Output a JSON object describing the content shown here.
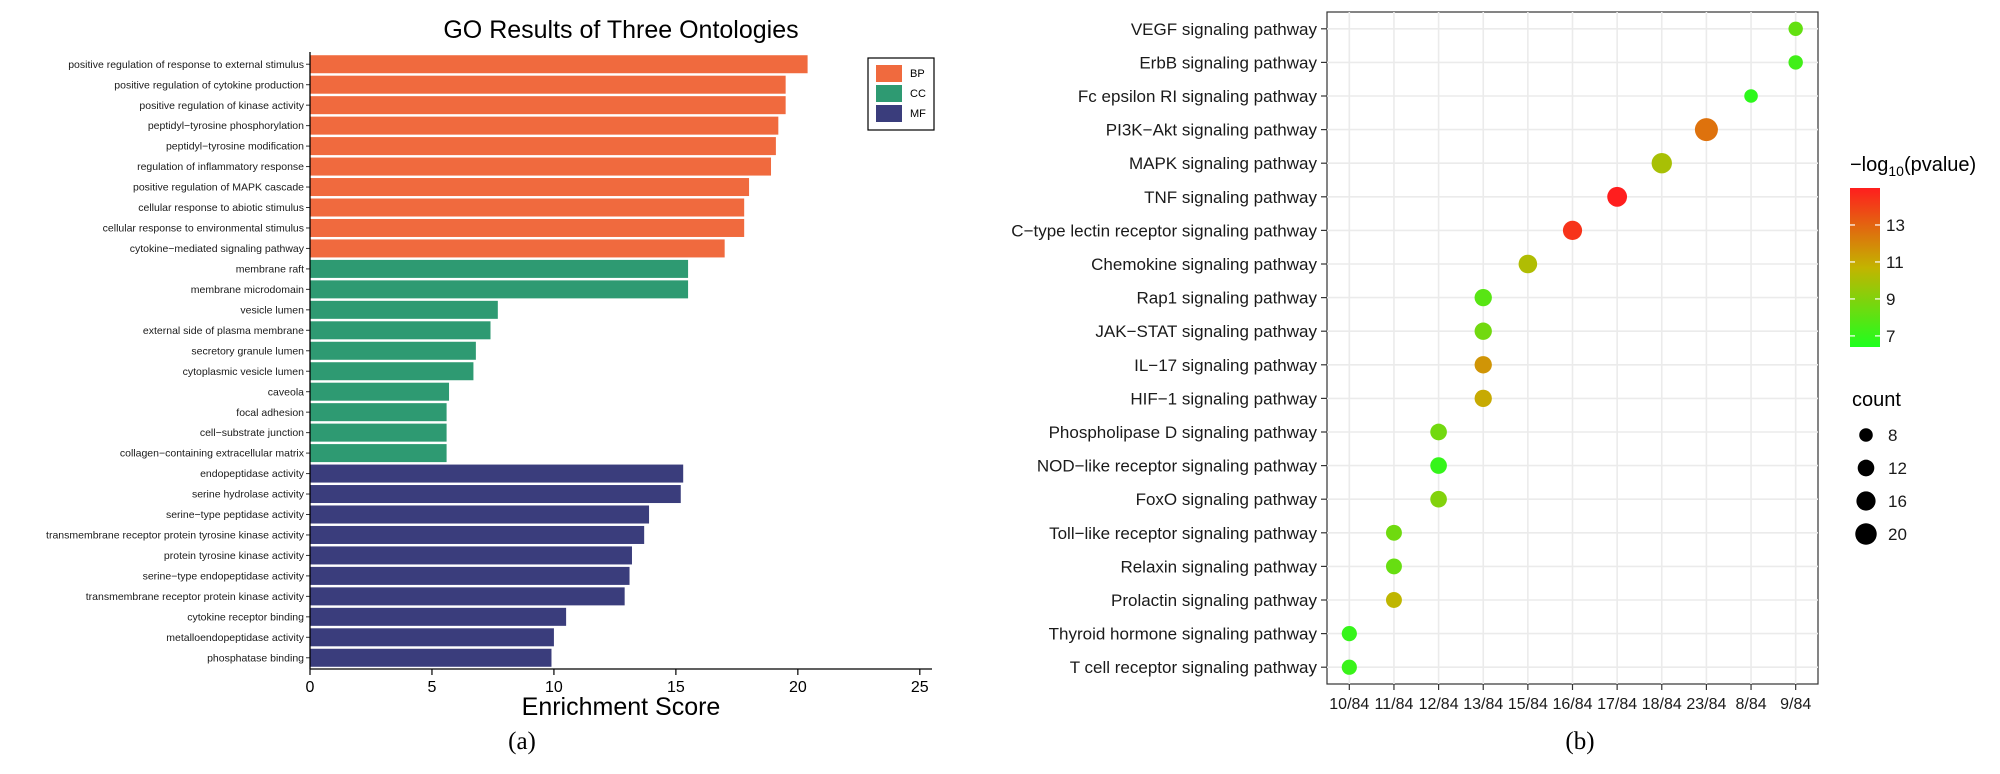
{
  "colors": {
    "BP": "#F06A3E",
    "CC": "#2E9A72",
    "MF": "#3A3D7C",
    "grid": "#EBEBEB",
    "low": "#1EFF1E",
    "high": "#FF1E1E",
    "mid": "#C3B400"
  },
  "chart_data": [
    {
      "type": "bar",
      "orientation": "horizontal",
      "title": "GO Results of Three Ontologies",
      "xlabel": "Enrichment Score",
      "ylabel": "",
      "xlim": [
        0,
        25.5
      ],
      "xticks": [
        "0",
        "5",
        "10",
        "15",
        "20",
        "25"
      ],
      "xtick_values": [
        0,
        5,
        10,
        15,
        20,
        25
      ],
      "panel_label": "(a)",
      "legend": {
        "position": "top-right",
        "entries": [
          "BP",
          "CC",
          "MF"
        ]
      },
      "bars": [
        {
          "label": "positive regulation of response to external stimulus",
          "value": 20.4,
          "group": "BP"
        },
        {
          "label": "positive regulation of cytokine production",
          "value": 19.5,
          "group": "BP"
        },
        {
          "label": "positive regulation of kinase activity",
          "value": 19.5,
          "group": "BP"
        },
        {
          "label": "peptidyl−tyrosine phosphorylation",
          "value": 19.2,
          "group": "BP"
        },
        {
          "label": "peptidyl−tyrosine modification",
          "value": 19.1,
          "group": "BP"
        },
        {
          "label": "regulation of inflammatory response",
          "value": 18.9,
          "group": "BP"
        },
        {
          "label": "positive regulation of MAPK cascade",
          "value": 18.0,
          "group": "BP"
        },
        {
          "label": "cellular response to abiotic stimulus",
          "value": 17.8,
          "group": "BP"
        },
        {
          "label": "cellular response to environmental stimulus",
          "value": 17.8,
          "group": "BP"
        },
        {
          "label": "cytokine−mediated signaling pathway",
          "value": 17.0,
          "group": "BP"
        },
        {
          "label": "membrane raft",
          "value": 15.5,
          "group": "CC"
        },
        {
          "label": "membrane microdomain",
          "value": 15.5,
          "group": "CC"
        },
        {
          "label": "vesicle lumen",
          "value": 7.7,
          "group": "CC"
        },
        {
          "label": "external side of plasma membrane",
          "value": 7.4,
          "group": "CC"
        },
        {
          "label": "secretory granule lumen",
          "value": 6.8,
          "group": "CC"
        },
        {
          "label": "cytoplasmic vesicle lumen",
          "value": 6.7,
          "group": "CC"
        },
        {
          "label": "caveola",
          "value": 5.7,
          "group": "CC"
        },
        {
          "label": "focal adhesion",
          "value": 5.6,
          "group": "CC"
        },
        {
          "label": "cell−substrate junction",
          "value": 5.6,
          "group": "CC"
        },
        {
          "label": "collagen−containing extracellular matrix",
          "value": 5.6,
          "group": "CC"
        },
        {
          "label": "endopeptidase activity",
          "value": 15.3,
          "group": "MF"
        },
        {
          "label": "serine hydrolase activity",
          "value": 15.2,
          "group": "MF"
        },
        {
          "label": "serine−type peptidase activity",
          "value": 13.9,
          "group": "MF"
        },
        {
          "label": "transmembrane receptor protein tyrosine kinase activity",
          "value": 13.7,
          "group": "MF"
        },
        {
          "label": "protein tyrosine kinase activity",
          "value": 13.2,
          "group": "MF"
        },
        {
          "label": "serine−type endopeptidase activity",
          "value": 13.1,
          "group": "MF"
        },
        {
          "label": "transmembrane receptor protein kinase activity",
          "value": 12.9,
          "group": "MF"
        },
        {
          "label": "cytokine receptor binding",
          "value": 10.5,
          "group": "MF"
        },
        {
          "label": "metalloendopeptidase activity",
          "value": 10.0,
          "group": "MF"
        },
        {
          "label": "phosphatase binding",
          "value": 9.9,
          "group": "MF"
        }
      ]
    },
    {
      "type": "scatter",
      "subtype": "bubble",
      "title": "",
      "xlabel": "",
      "ylabel": "",
      "panel_label": "(b)",
      "x_categories": [
        "10/84",
        "11/84",
        "12/84",
        "13/84",
        "15/84",
        "16/84",
        "17/84",
        "18/84",
        "23/84",
        "8/84",
        "9/84"
      ],
      "y_categories": [
        "VEGF signaling pathway",
        "ErbB signaling pathway",
        "Fc epsilon RI signaling pathway",
        "PI3K−Akt signaling pathway",
        "MAPK signaling pathway",
        "TNF signaling pathway",
        "C−type lectin receptor signaling pathway",
        "Chemokine signaling pathway",
        "Rap1 signaling pathway",
        "JAK−STAT signaling pathway",
        "IL−17 signaling pathway",
        "HIF−1 signaling pathway",
        "Phospholipase D signaling pathway",
        "NOD−like receptor signaling pathway",
        "FoxO signaling pathway",
        "Toll−like receptor signaling pathway",
        "Relaxin signaling pathway",
        "Prolactin signaling pathway",
        "Thyroid hormone signaling pathway",
        "T cell receptor signaling pathway"
      ],
      "color_legend": {
        "title_prefix": "−log",
        "title_sub": "10",
        "title_suffix": "(pvalue)",
        "ticks": [
          "7",
          "9",
          "11",
          "13"
        ],
        "tick_values": [
          7,
          9,
          11,
          13
        ],
        "range": [
          6.4,
          15.0
        ]
      },
      "size_legend": {
        "title": "count",
        "entries": [
          "8",
          "12",
          "16",
          "20"
        ],
        "values": [
          8,
          12,
          16,
          20
        ]
      },
      "points": [
        {
          "pathway": "VEGF signaling pathway",
          "ratio": "9/84",
          "count": 9,
          "neglog10p": 8.2
        },
        {
          "pathway": "ErbB signaling pathway",
          "ratio": "9/84",
          "count": 9,
          "neglog10p": 7.3
        },
        {
          "pathway": "Fc epsilon RI signaling pathway",
          "ratio": "8/84",
          "count": 8,
          "neglog10p": 6.8
        },
        {
          "pathway": "PI3K−Akt signaling pathway",
          "ratio": "23/84",
          "count": 23,
          "neglog10p": 12.6
        },
        {
          "pathway": "MAPK signaling pathway",
          "ratio": "18/84",
          "count": 18,
          "neglog10p": 10.0
        },
        {
          "pathway": "TNF signaling pathway",
          "ratio": "17/84",
          "count": 17,
          "neglog10p": 15.0
        },
        {
          "pathway": "C−type lectin receptor signaling pathway",
          "ratio": "16/84",
          "count": 16,
          "neglog10p": 14.4
        },
        {
          "pathway": "Chemokine signaling pathway",
          "ratio": "15/84",
          "count": 15,
          "neglog10p": 10.2
        },
        {
          "pathway": "Rap1 signaling pathway",
          "ratio": "13/84",
          "count": 13,
          "neglog10p": 7.9
        },
        {
          "pathway": "JAK−STAT signaling pathway",
          "ratio": "13/84",
          "count": 13,
          "neglog10p": 8.6
        },
        {
          "pathway": "IL−17 signaling pathway",
          "ratio": "13/84",
          "count": 13,
          "neglog10p": 11.6
        },
        {
          "pathway": "HIF−1 signaling pathway",
          "ratio": "13/84",
          "count": 13,
          "neglog10p": 11.0
        },
        {
          "pathway": "Phospholipase D signaling pathway",
          "ratio": "12/84",
          "count": 12,
          "neglog10p": 8.6
        },
        {
          "pathway": "NOD−like receptor signaling pathway",
          "ratio": "12/84",
          "count": 12,
          "neglog10p": 7.0
        },
        {
          "pathway": "FoxO signaling pathway",
          "ratio": "12/84",
          "count": 12,
          "neglog10p": 9.0
        },
        {
          "pathway": "Toll−like receptor signaling pathway",
          "ratio": "11/84",
          "count": 11,
          "neglog10p": 8.5
        },
        {
          "pathway": "Relaxin signaling pathway",
          "ratio": "11/84",
          "count": 11,
          "neglog10p": 8.3
        },
        {
          "pathway": "Prolactin signaling pathway",
          "ratio": "11/84",
          "count": 11,
          "neglog10p": 10.6
        },
        {
          "pathway": "Thyroid hormone signaling pathway",
          "ratio": "10/84",
          "count": 10,
          "neglog10p": 7.0
        },
        {
          "pathway": "T cell receptor signaling pathway",
          "ratio": "10/84",
          "count": 10,
          "neglog10p": 7.1
        }
      ]
    }
  ]
}
